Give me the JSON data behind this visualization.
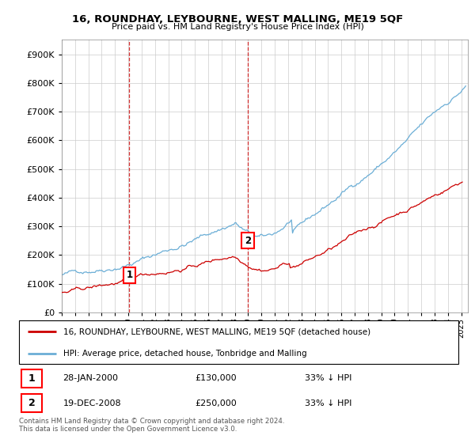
{
  "title": "16, ROUNDHAY, LEYBOURNE, WEST MALLING, ME19 5QF",
  "subtitle": "Price paid vs. HM Land Registry's House Price Index (HPI)",
  "legend_line1": "16, ROUNDHAY, LEYBOURNE, WEST MALLING, ME19 5QF (detached house)",
  "legend_line2": "HPI: Average price, detached house, Tonbridge and Malling",
  "footnote": "Contains HM Land Registry data © Crown copyright and database right 2024.\nThis data is licensed under the Open Government Licence v3.0.",
  "table": [
    {
      "num": "1",
      "date": "28-JAN-2000",
      "price": "£130,000",
      "hpi": "33% ↓ HPI"
    },
    {
      "num": "2",
      "date": "19-DEC-2008",
      "price": "£250,000",
      "hpi": "33% ↓ HPI"
    }
  ],
  "marker1_year": 2000.07,
  "marker1_price": 130000,
  "marker2_year": 2008.97,
  "marker2_price": 250000,
  "hpi_color": "#6baed6",
  "price_color": "#cc0000",
  "marker_line_color": "#cc0000",
  "ylim": [
    0,
    950000
  ],
  "yticks": [
    0,
    100000,
    200000,
    300000,
    400000,
    500000,
    600000,
    700000,
    800000,
    900000
  ],
  "xlim_start": 1995.0,
  "xlim_end": 2025.5,
  "xtick_years": [
    1995,
    1996,
    1997,
    1998,
    1999,
    2000,
    2001,
    2002,
    2003,
    2004,
    2005,
    2006,
    2007,
    2008,
    2009,
    2010,
    2011,
    2012,
    2013,
    2014,
    2015,
    2016,
    2017,
    2018,
    2019,
    2020,
    2021,
    2022,
    2023,
    2024,
    2025
  ]
}
